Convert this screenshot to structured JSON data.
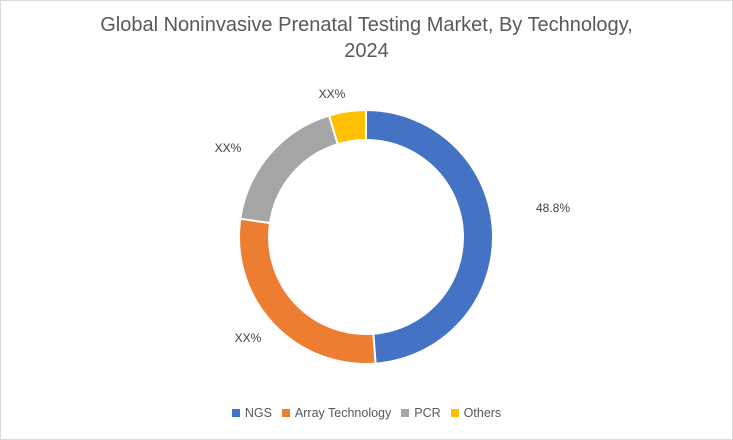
{
  "chart_data": {
    "type": "pie",
    "variant": "donut",
    "title": "Global Noninvasive Prenatal Testing Market, By Technology, 2024",
    "title_lines": [
      "Global Noninvasive Prenatal Testing Market, By Technology,",
      "2024"
    ],
    "categories": [
      "NGS",
      "Array Technology",
      "PCR",
      "Others"
    ],
    "values": [
      48.8,
      28.5,
      18.0,
      4.7
    ],
    "data_labels": [
      "48.8%",
      "XX%",
      "XX%",
      "XX%"
    ],
    "colors": [
      "#4472c4",
      "#ed7d31",
      "#a5a5a5",
      "#ffc000"
    ],
    "legend_position": "bottom"
  }
}
